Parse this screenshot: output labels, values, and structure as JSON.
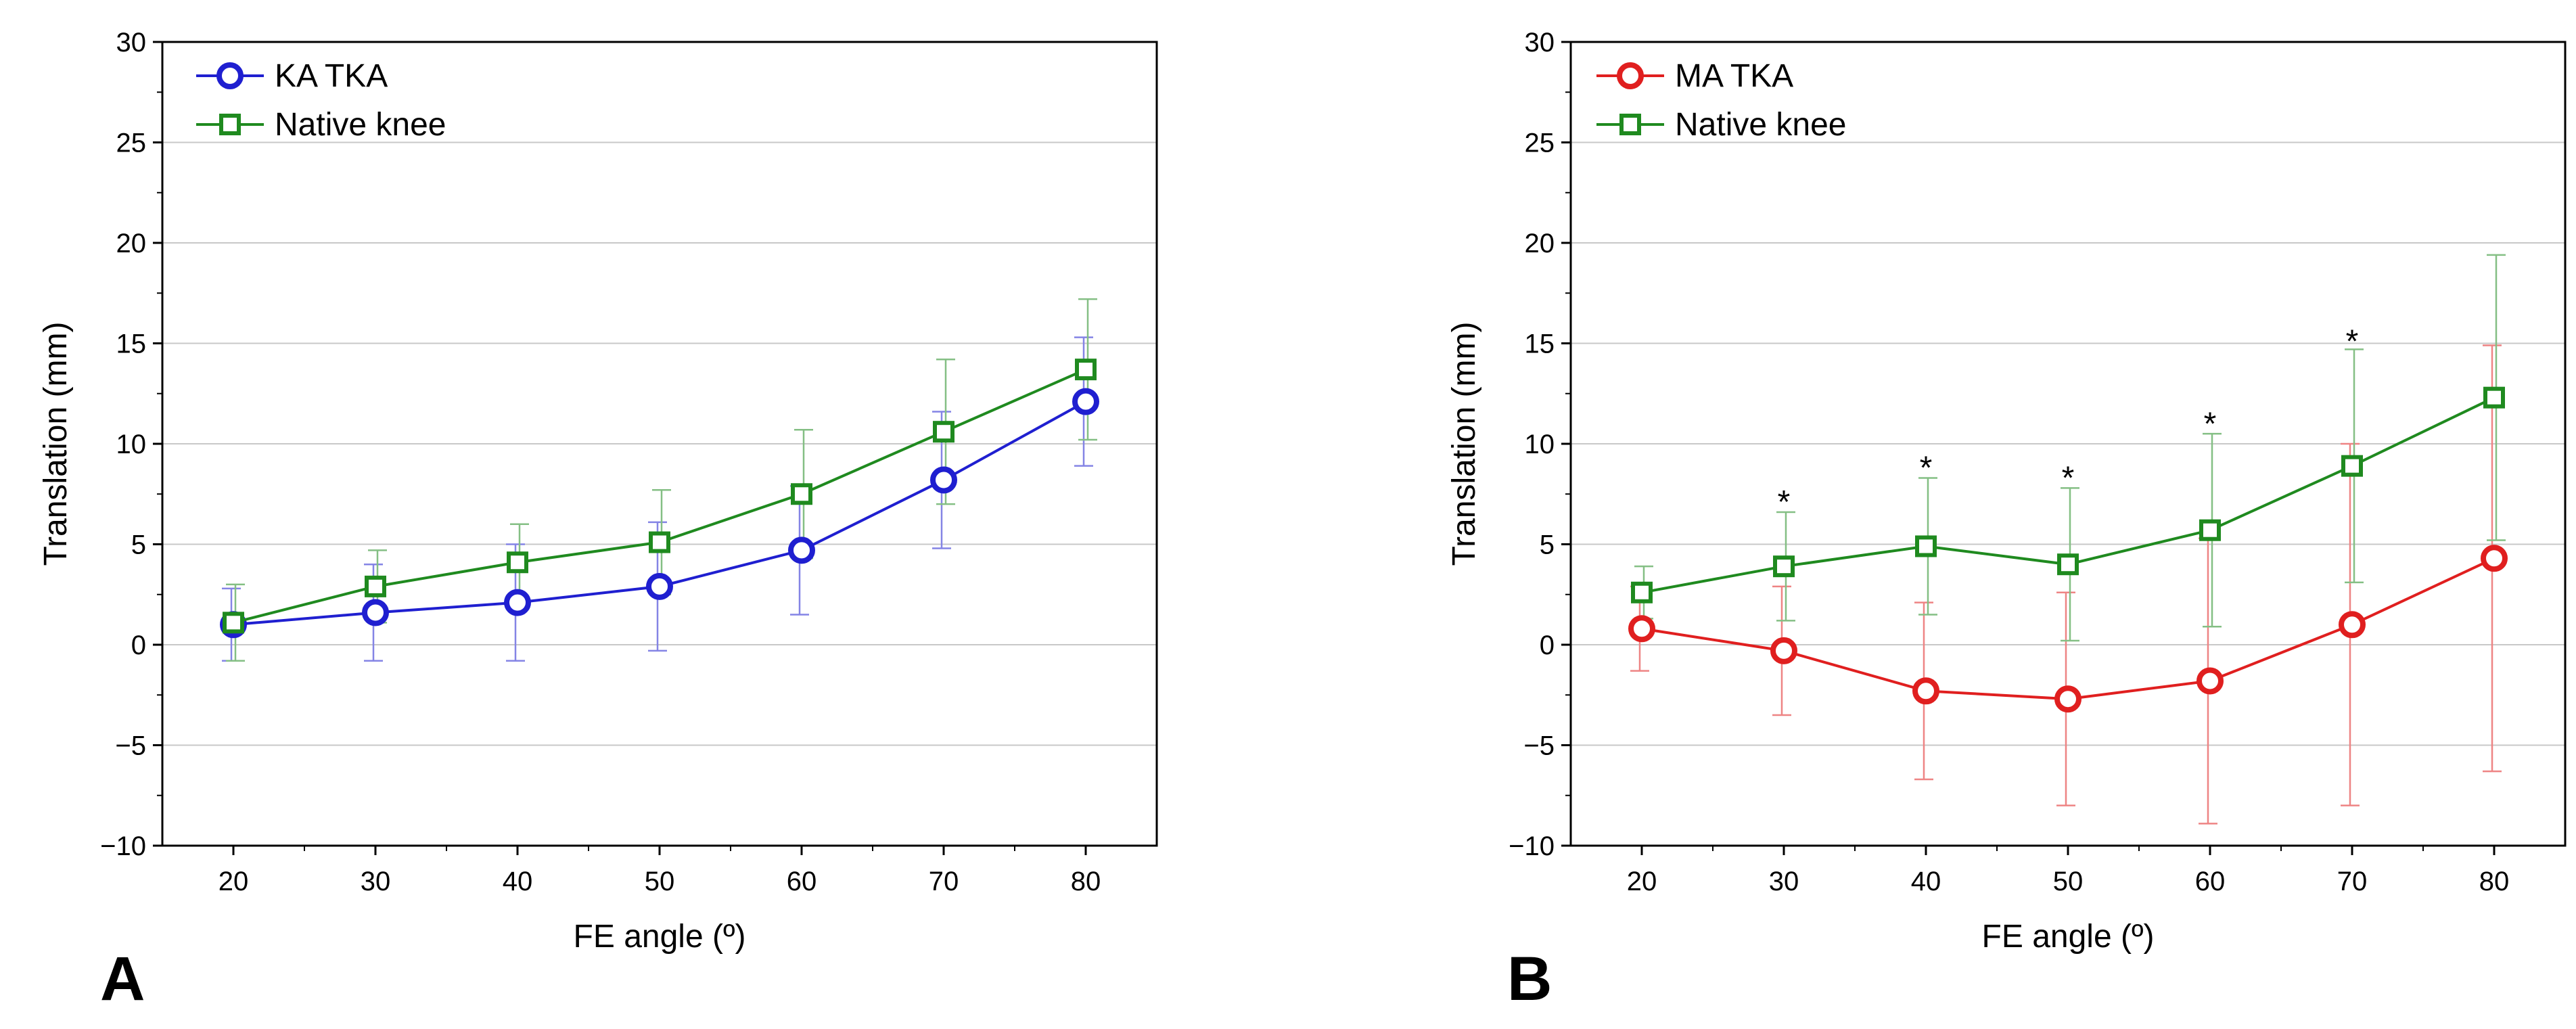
{
  "colors": {
    "ka": "#1f1fd0",
    "ma": "#e01f1f",
    "native": "#1f8a1f",
    "grid": "#c8c8c8",
    "axis": "#000000"
  },
  "chart_data": [
    {
      "panel_label": "A",
      "type": "line",
      "xlabel": "FE angle (º)",
      "ylabel": "Translation (mm)",
      "xlim": [
        15,
        85
      ],
      "ylim": [
        -10,
        30
      ],
      "xticks": [
        20,
        30,
        40,
        50,
        60,
        70,
        80
      ],
      "yticks": [
        -10,
        -5,
        0,
        5,
        10,
        15,
        20,
        25,
        30
      ],
      "grid": true,
      "legend_position": "top-left",
      "x": [
        20,
        30,
        40,
        50,
        60,
        70,
        80
      ],
      "series": [
        {
          "name": "KA TKA",
          "marker": "circle",
          "color": "#1f1fd0",
          "values": [
            1.0,
            1.6,
            2.1,
            2.9,
            4.7,
            8.2,
            12.1
          ],
          "sd": [
            1.8,
            2.4,
            2.9,
            3.2,
            3.2,
            3.4,
            3.2
          ]
        },
        {
          "name": "Native knee",
          "marker": "square",
          "color": "#1f8a1f",
          "values": [
            1.1,
            2.9,
            4.1,
            5.1,
            7.5,
            10.6,
            13.7
          ],
          "sd": [
            1.9,
            1.8,
            1.9,
            2.6,
            3.2,
            3.6,
            3.5
          ]
        }
      ],
      "annotations": []
    },
    {
      "panel_label": "B",
      "type": "line",
      "xlabel": "FE angle (º)",
      "ylabel": "Translation (mm)",
      "xlim": [
        15,
        85
      ],
      "ylim": [
        -10,
        30
      ],
      "xticks": [
        20,
        30,
        40,
        50,
        60,
        70,
        80
      ],
      "yticks": [
        -10,
        -5,
        0,
        5,
        10,
        15,
        20,
        25,
        30
      ],
      "grid": true,
      "legend_position": "top-left",
      "x": [
        20,
        30,
        40,
        50,
        60,
        70,
        80
      ],
      "series": [
        {
          "name": "MA TKA",
          "marker": "circle",
          "color": "#e01f1f",
          "values": [
            0.8,
            -0.3,
            -2.3,
            -2.7,
            -1.8,
            1.0,
            4.3
          ],
          "sd": [
            2.1,
            3.2,
            4.4,
            5.3,
            7.1,
            9.0,
            10.6
          ]
        },
        {
          "name": "Native knee",
          "marker": "square",
          "color": "#1f8a1f",
          "values": [
            2.6,
            3.9,
            4.9,
            4.0,
            5.7,
            8.9,
            12.3
          ],
          "sd": [
            1.3,
            2.7,
            3.4,
            3.8,
            4.8,
            5.8,
            7.1
          ]
        }
      ],
      "annotations": [
        {
          "x": 30,
          "y": 7.3,
          "text": "*"
        },
        {
          "x": 40,
          "y": 9.0,
          "text": "*"
        },
        {
          "x": 50,
          "y": 8.5,
          "text": "*"
        },
        {
          "x": 60,
          "y": 11.2,
          "text": "*"
        },
        {
          "x": 70,
          "y": 15.3,
          "text": "*"
        }
      ]
    }
  ]
}
